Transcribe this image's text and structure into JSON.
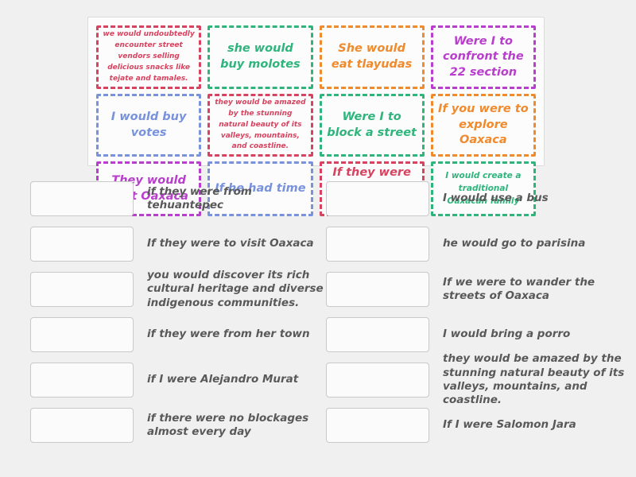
{
  "colors": {
    "red": "#d7435e",
    "green": "#2fb57c",
    "orange": "#ef8a2d",
    "purple": "#b83fcb",
    "blue": "#7892dc"
  },
  "tile_panel": {
    "tiles": [
      {
        "label": "we would undoubtedly encounter street vendors selling delicious snacks like tejate and tamales.",
        "color": "red",
        "text_size": "small"
      },
      {
        "label": "she would buy molotes",
        "color": "green",
        "text_size": "large"
      },
      {
        "label": "She would eat tlayudas",
        "color": "orange",
        "text_size": "large"
      },
      {
        "label": "Were I to confront the 22 section",
        "color": "purple",
        "text_size": "large"
      },
      {
        "label": "I would buy votes",
        "color": "blue",
        "text_size": "large"
      },
      {
        "label": "they would be amazed by the stunning natural beauty of its valleys, mountains, and coastline.",
        "color": "red",
        "text_size": "small"
      },
      {
        "label": "Were I to block a street",
        "color": "green",
        "text_size": "large"
      },
      {
        "label": "If you were to explore Oaxaca",
        "color": "orange",
        "text_size": "large"
      },
      {
        "label": "They would visit Oaxaca",
        "color": "purple",
        "text_size": "large"
      },
      {
        "label": "If he had time",
        "color": "blue",
        "text_size": "large"
      },
      {
        "label": "If they were to visit Oaxaca",
        "color": "red",
        "text_size": "large"
      },
      {
        "label": "I would create a traditional Oaxacan family",
        "color": "green",
        "text_size": "medium"
      }
    ]
  },
  "match_list": {
    "left": [
      {
        "text": "if they were from tehuantepec"
      },
      {
        "text": "If they were to visit Oaxaca"
      },
      {
        "text": "you would discover its rich cultural heritage and diverse indigenous communities."
      },
      {
        "text": "if they were from her town"
      },
      {
        "text": "if I were Alejandro Murat"
      },
      {
        "text": "if there were no blockages almost every day"
      }
    ],
    "right": [
      {
        "text": "I would use a bus"
      },
      {
        "text": "he would go to parisina"
      },
      {
        "text": "If we were to wander the streets of Oaxaca"
      },
      {
        "text": "I would bring a porro"
      },
      {
        "text": "they would be amazed by the stunning natural beauty of its valleys, mountains, and coastline."
      },
      {
        "text": "If I were Salomon Jara"
      }
    ]
  }
}
